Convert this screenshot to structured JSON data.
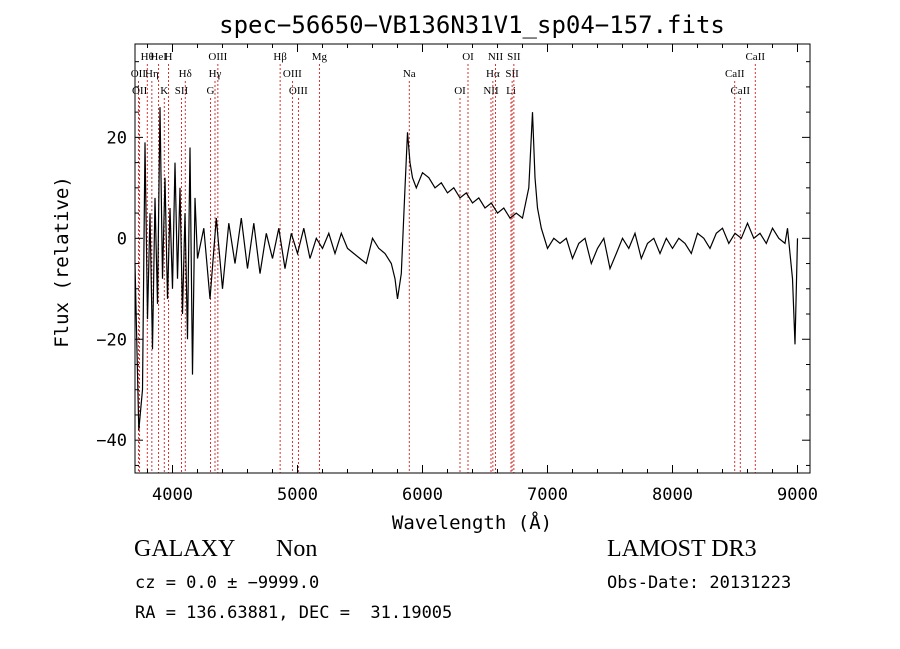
{
  "chart_data": {
    "type": "line",
    "title": "spec−56650−VB136N31V1_sp04−157.fits",
    "xlabel": "Wavelength (Å)",
    "ylabel": "Flux (relative)",
    "xlim": [
      3700,
      9100
    ],
    "ylim": [
      -46.5,
      38.5
    ],
    "xticks": [
      4000,
      5000,
      6000,
      7000,
      8000,
      9000
    ],
    "yticks": [
      -40,
      -20,
      0,
      20
    ],
    "grid": false,
    "legend": "none",
    "series": [
      {
        "x": [
          3700,
          3730,
          3760,
          3780,
          3800,
          3820,
          3840,
          3860,
          3880,
          3900,
          3920,
          3940,
          3960,
          3980,
          4000,
          4020,
          4040,
          4060,
          4080,
          4100,
          4120,
          4140,
          4160,
          4180,
          4200,
          4250,
          4300,
          4350,
          4400,
          4450,
          4500,
          4550,
          4600,
          4650,
          4700,
          4750,
          4800,
          4850,
          4900,
          4950,
          5000,
          5050,
          5100,
          5150,
          5200,
          5250,
          5300,
          5350,
          5400,
          5450,
          5500,
          5550,
          5600,
          5650,
          5700,
          5750,
          5780,
          5800,
          5830,
          5860,
          5880,
          5900,
          5920,
          5950,
          6000,
          6050,
          6100,
          6150,
          6200,
          6250,
          6300,
          6350,
          6400,
          6450,
          6500,
          6550,
          6600,
          6650,
          6700,
          6750,
          6800,
          6850,
          6880,
          6900,
          6920,
          6950,
          7000,
          7050,
          7100,
          7150,
          7200,
          7250,
          7300,
          7350,
          7400,
          7450,
          7500,
          7550,
          7600,
          7650,
          7700,
          7750,
          7800,
          7850,
          7900,
          7950,
          8000,
          8050,
          8100,
          8150,
          8200,
          8250,
          8300,
          8350,
          8400,
          8450,
          8500,
          8550,
          8600,
          8650,
          8700,
          8750,
          8800,
          8850,
          8900,
          8920,
          8940,
          8960,
          8980,
          9000
        ],
        "y": [
          -5,
          -38,
          -30,
          19,
          -16,
          5,
          -22,
          8,
          -13,
          26,
          -8,
          12,
          -12,
          6,
          -10,
          15,
          -8,
          10,
          -15,
          5,
          -20,
          18,
          -27,
          8,
          -4,
          2,
          -12,
          4,
          -10,
          3,
          -5,
          4,
          -6,
          3,
          -7,
          1,
          -4,
          2,
          -6,
          1,
          -3,
          2,
          -4,
          0,
          -2,
          1,
          -3,
          1,
          -2,
          -3,
          -4,
          -5,
          0,
          -2,
          -3,
          -5,
          -8,
          -12,
          -7,
          10,
          21,
          15,
          12,
          10,
          13,
          12,
          10,
          11,
          9,
          10,
          8,
          9,
          7,
          8,
          6,
          7,
          5,
          6,
          4,
          5,
          4,
          10,
          25,
          12,
          6,
          2,
          -2,
          0,
          -1,
          0,
          -4,
          -1,
          0,
          -5,
          -2,
          0,
          -6,
          -3,
          0,
          -2,
          1,
          -4,
          -1,
          0,
          -3,
          0,
          -2,
          0,
          -1,
          -3,
          1,
          0,
          -2,
          1,
          2,
          -1,
          1,
          0,
          3,
          0,
          1,
          -1,
          2,
          0,
          -1,
          2,
          -3,
          -8,
          -21,
          0
        ]
      }
    ],
    "line_markers": [
      {
        "label": "Hθ",
        "wl": 3798
      },
      {
        "label": "OII",
        "wl": 3727
      },
      {
        "label": "OII",
        "wl": 3737
      },
      {
        "label": "HeI",
        "wl": 3889
      },
      {
        "label": "Hη",
        "wl": 3835
      },
      {
        "label": "K",
        "wl": 3934
      },
      {
        "label": "H",
        "wl": 3968
      },
      {
        "label": "Hδ",
        "wl": 4102
      },
      {
        "label": "SII",
        "wl": 4072
      },
      {
        "label": "OIII",
        "wl": 4363
      },
      {
        "label": "Hγ",
        "wl": 4340
      },
      {
        "label": "G",
        "wl": 4304
      },
      {
        "label": "Hβ",
        "wl": 4861
      },
      {
        "label": "OIII",
        "wl": 4959
      },
      {
        "label": "OIII",
        "wl": 5007
      },
      {
        "label": "Mg",
        "wl": 5175
      },
      {
        "label": "Na",
        "wl": 5894
      },
      {
        "label": "OI",
        "wl": 6300
      },
      {
        "label": "OI",
        "wl": 6364
      },
      {
        "label": "Hα",
        "wl": 6563
      },
      {
        "label": "NII",
        "wl": 6548
      },
      {
        "label": "NII",
        "wl": 6584
      },
      {
        "label": "SII",
        "wl": 6717
      },
      {
        "label": "Li",
        "wl": 6708
      },
      {
        "label": "SII",
        "wl": 6731
      },
      {
        "label": "CaII",
        "wl": 8498
      },
      {
        "label": "CaII",
        "wl": 8542
      },
      {
        "label": "CaII",
        "wl": 8662
      }
    ]
  },
  "info": {
    "class": "GALAXY",
    "subclass": "Non",
    "survey": "LAMOST DR3",
    "cz": "cz = 0.0 ± −9999.0",
    "obs_date": "Obs-Date: 20131223",
    "coords": "RA = 136.63881, DEC =  31.19005"
  }
}
